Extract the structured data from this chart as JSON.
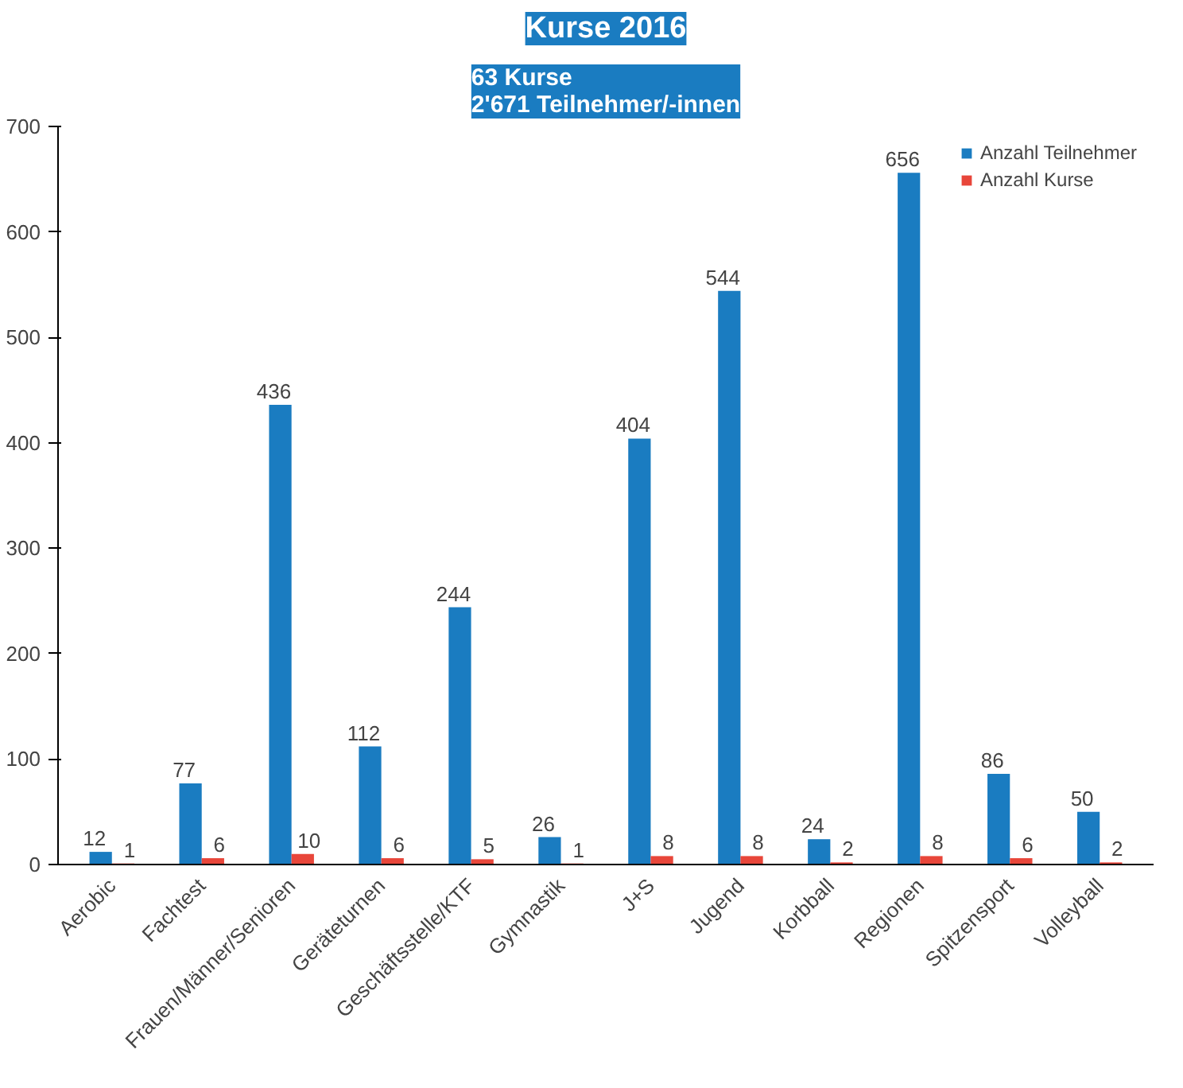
{
  "chart_data": {
    "type": "bar",
    "title": "Kurse 2016",
    "subtitle": "63 Kurse\n2'671 Teilnehmer/-innen",
    "categories": [
      "Aerobic",
      "Fachtest",
      "Frauen/Männer/Senioren",
      "Geräteturnen",
      "Geschäftsstelle/KTF",
      "Gymnastik",
      "J+S",
      "Jugend",
      "Korbball",
      "Regionen",
      "Spitzensport",
      "Volleyball"
    ],
    "series": [
      {
        "name": "Anzahl Teilnehmer",
        "color": "#1a7cc1",
        "values": [
          12,
          77,
          436,
          112,
          244,
          26,
          404,
          544,
          24,
          656,
          86,
          50
        ]
      },
      {
        "name": "Anzahl Kurse",
        "color": "#e8463a",
        "values": [
          1,
          6,
          10,
          6,
          5,
          1,
          8,
          8,
          2,
          8,
          6,
          2
        ]
      }
    ],
    "ylim": [
      0,
      700
    ],
    "yticks": [
      0,
      100,
      200,
      300,
      400,
      500,
      600,
      700
    ],
    "grid": false,
    "legend": "top right",
    "data_labels": true
  }
}
